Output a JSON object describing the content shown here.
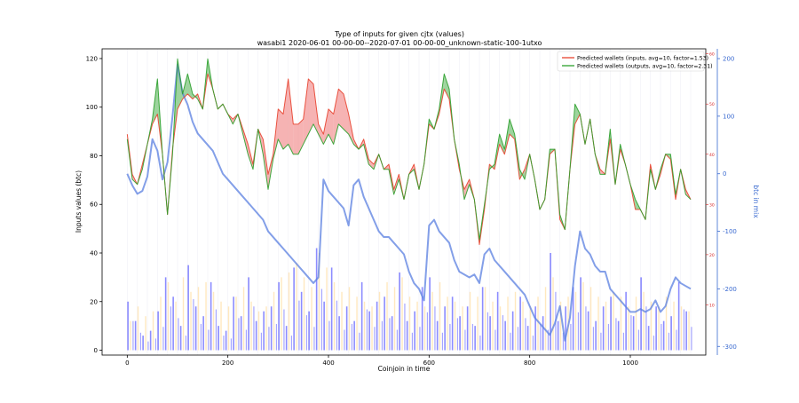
{
  "chart_data": {
    "type": "line",
    "title": "Type of inputs for given cjtx (values)",
    "subtitle": "wasabi1 2020-06-01 00-00-00--2020-07-01 00-00-00_unknown-static-100-1utxo",
    "xlabel": "Coinjoin in time",
    "ylabel": "Inputs values (btc)",
    "y2label": "btc in mix",
    "xlim": [
      -50,
      1150
    ],
    "ylim": [
      -2,
      124
    ],
    "y2lim": [
      -315,
      217
    ],
    "y3lim": [
      0,
      61
    ],
    "x_ticks": [
      0,
      200,
      400,
      600,
      800,
      1000
    ],
    "y_ticks": [
      0,
      20,
      40,
      60,
      80,
      100,
      120
    ],
    "y2_ticks": [
      -300,
      -200,
      -100,
      0,
      100,
      200
    ],
    "y3_ticks": [
      10,
      20,
      30,
      40,
      50,
      60
    ],
    "legend_position": "top-right",
    "grid": false,
    "series": [
      {
        "name": "Predicted wallets (inputs, avg=10, factor=1.53)",
        "color": "#e8432f",
        "axis": "right-inner",
        "x": [
          0,
          10,
          20,
          30,
          40,
          50,
          60,
          70,
          80,
          90,
          100,
          110,
          120,
          130,
          140,
          150,
          160,
          170,
          180,
          190,
          200,
          210,
          220,
          230,
          240,
          250,
          260,
          270,
          280,
          290,
          300,
          310,
          320,
          330,
          340,
          350,
          360,
          370,
          380,
          390,
          400,
          410,
          420,
          430,
          440,
          450,
          460,
          470,
          480,
          490,
          500,
          510,
          520,
          530,
          540,
          550,
          560,
          570,
          580,
          590,
          600,
          610,
          620,
          630,
          640,
          650,
          660,
          670,
          680,
          690,
          700,
          710,
          720,
          730,
          740,
          750,
          760,
          770,
          780,
          790,
          800,
          810,
          820,
          830,
          840,
          850,
          860,
          870,
          880,
          890,
          900,
          910,
          920,
          930,
          940,
          950,
          960,
          970,
          980,
          990,
          1000,
          1010,
          1020,
          1030,
          1040,
          1050,
          1060,
          1070,
          1080,
          1090,
          1100,
          1110,
          1120
        ],
        "values": [
          44,
          36,
          34,
          38,
          42,
          46,
          48,
          40,
          28,
          41,
          49,
          51,
          52,
          51,
          52,
          49,
          56,
          53,
          49,
          50,
          48,
          47,
          48,
          45,
          42,
          38,
          45,
          43,
          36,
          40,
          49,
          48,
          55,
          46,
          46,
          47,
          55,
          54,
          46,
          44,
          49,
          48,
          53,
          52,
          48,
          43,
          41,
          43,
          39,
          38,
          40,
          37,
          38,
          33,
          36,
          31,
          36,
          38,
          33,
          38,
          46,
          45,
          48,
          53,
          51,
          43,
          37,
          33,
          35,
          31,
          22,
          29,
          38,
          37,
          42,
          40,
          44,
          43,
          35,
          37,
          40,
          35,
          29,
          31,
          40,
          41,
          27,
          25,
          37,
          46,
          48,
          42,
          47,
          40,
          37,
          36,
          43,
          34,
          41,
          38,
          34,
          29,
          29,
          27,
          38,
          33,
          36,
          40,
          39,
          31,
          37,
          33,
          31
        ]
      },
      {
        "name": "Predicted wallets (outputs, avg=10, factor=2.31)",
        "color": "#2ca02c",
        "axis": "right-inner",
        "x": [
          0,
          10,
          20,
          30,
          40,
          50,
          60,
          70,
          80,
          90,
          100,
          110,
          120,
          130,
          140,
          150,
          160,
          170,
          180,
          190,
          200,
          210,
          220,
          230,
          240,
          250,
          260,
          270,
          280,
          290,
          300,
          310,
          320,
          330,
          340,
          350,
          360,
          370,
          380,
          390,
          400,
          410,
          420,
          430,
          440,
          450,
          460,
          470,
          480,
          490,
          500,
          510,
          520,
          530,
          540,
          550,
          560,
          570,
          580,
          590,
          600,
          610,
          620,
          630,
          640,
          650,
          660,
          670,
          680,
          690,
          700,
          710,
          720,
          730,
          740,
          750,
          760,
          770,
          780,
          790,
          800,
          810,
          820,
          830,
          840,
          850,
          860,
          870,
          880,
          890,
          900,
          910,
          920,
          930,
          940,
          950,
          960,
          970,
          980,
          990,
          1000,
          1010,
          1020,
          1030,
          1040,
          1050,
          1060,
          1070,
          1080,
          1090,
          1100,
          1110,
          1120
        ],
        "values": [
          43,
          35,
          34,
          37,
          42,
          47,
          55,
          40,
          28,
          40,
          59,
          52,
          56,
          52,
          51,
          49,
          59,
          53,
          49,
          50,
          48,
          46,
          48,
          44,
          40,
          37,
          45,
          40,
          33,
          39,
          43,
          41,
          42,
          40,
          40,
          42,
          44,
          46,
          44,
          42,
          44,
          42,
          46,
          45,
          44,
          42,
          41,
          42,
          38,
          37,
          40,
          37,
          37,
          32,
          35,
          31,
          36,
          37,
          33,
          38,
          47,
          45,
          49,
          56,
          53,
          43,
          38,
          31,
          34,
          31,
          23,
          30,
          37,
          38,
          44,
          41,
          47,
          44,
          37,
          35,
          40,
          35,
          29,
          31,
          41,
          41,
          28,
          25,
          37,
          50,
          48,
          42,
          47,
          40,
          36,
          36,
          45,
          34,
          42,
          38,
          34,
          31,
          29,
          27,
          37,
          33,
          37,
          40,
          40,
          32,
          37,
          32,
          31
        ]
      },
      {
        "name": "btc in mix",
        "color": "#5a7fe0",
        "axis": "right",
        "x": [
          0,
          10,
          20,
          30,
          40,
          50,
          60,
          70,
          80,
          90,
          100,
          110,
          120,
          130,
          140,
          150,
          160,
          170,
          180,
          190,
          200,
          210,
          220,
          230,
          240,
          250,
          260,
          270,
          280,
          290,
          300,
          310,
          320,
          330,
          340,
          350,
          360,
          370,
          380,
          390,
          400,
          410,
          420,
          430,
          440,
          450,
          460,
          470,
          480,
          490,
          500,
          510,
          520,
          530,
          540,
          550,
          560,
          570,
          580,
          590,
          600,
          610,
          620,
          630,
          640,
          650,
          660,
          670,
          680,
          690,
          700,
          710,
          720,
          730,
          740,
          750,
          760,
          770,
          780,
          790,
          800,
          810,
          820,
          830,
          840,
          850,
          860,
          870,
          880,
          890,
          900,
          910,
          920,
          930,
          940,
          950,
          960,
          970,
          980,
          990,
          1000,
          1010,
          1020,
          1030,
          1040,
          1050,
          1060,
          1070,
          1080,
          1090,
          1100,
          1110,
          1120
        ],
        "values": [
          0,
          -20,
          -35,
          -30,
          -5,
          60,
          40,
          -10,
          20,
          100,
          190,
          140,
          120,
          90,
          70,
          60,
          50,
          40,
          20,
          0,
          -10,
          -20,
          -30,
          -40,
          -50,
          -60,
          -70,
          -80,
          -100,
          -110,
          -120,
          -130,
          -140,
          -150,
          -160,
          -170,
          -180,
          -190,
          -180,
          -10,
          -30,
          -40,
          -50,
          -60,
          -90,
          -20,
          -10,
          -40,
          -60,
          -80,
          -100,
          -110,
          -110,
          -120,
          -130,
          -140,
          -170,
          -190,
          -200,
          -220,
          -90,
          -80,
          -100,
          -110,
          -120,
          -150,
          -170,
          -175,
          -180,
          -175,
          -190,
          -140,
          -130,
          -150,
          -160,
          -170,
          -180,
          -190,
          -200,
          -210,
          -230,
          -250,
          -260,
          -270,
          -280,
          -260,
          -230,
          -290,
          -250,
          -160,
          -100,
          -130,
          -140,
          -160,
          -170,
          -170,
          -200,
          -210,
          -220,
          -230,
          -240,
          -240,
          -235,
          -240,
          -235,
          -220,
          -240,
          -230,
          -200,
          -180,
          -190,
          -195,
          -200
        ]
      }
    ],
    "background_bars": {
      "colors": [
        "#0000ff",
        "#ffa500"
      ],
      "x": [
        0,
        15,
        30,
        45,
        60,
        75,
        90,
        105,
        120,
        135,
        150,
        165,
        180,
        195,
        210,
        225,
        240,
        255,
        270,
        285,
        300,
        315,
        330,
        345,
        360,
        375,
        390,
        405,
        420,
        435,
        450,
        465,
        480,
        495,
        510,
        525,
        540,
        555,
        570,
        585,
        600,
        615,
        630,
        645,
        660,
        675,
        690,
        705,
        720,
        735,
        750,
        765,
        780,
        795,
        810,
        825,
        840,
        855,
        870,
        885,
        900,
        915,
        930,
        945,
        960,
        975,
        990,
        1005,
        1020,
        1035,
        1050,
        1065,
        1080,
        1095,
        1110
      ],
      "blue_values": [
        20,
        12,
        6,
        8,
        16,
        30,
        22,
        10,
        35,
        18,
        14,
        28,
        10,
        8,
        22,
        14,
        30,
        12,
        16,
        18,
        28,
        10,
        34,
        24,
        16,
        42,
        20,
        34,
        14,
        18,
        12,
        28,
        16,
        20,
        22,
        14,
        32,
        12,
        16,
        26,
        30,
        12,
        18,
        22,
        14,
        18,
        10,
        26,
        14,
        24,
        12,
        16,
        22,
        10,
        18,
        14,
        40,
        12,
        18,
        26,
        30,
        16,
        12,
        18,
        22,
        12,
        24,
        14,
        30,
        10,
        18,
        12,
        14,
        28,
        16
      ],
      "orange_values": [
        12,
        18,
        14,
        16,
        22,
        28,
        20,
        30,
        24,
        26,
        28,
        24,
        20,
        18,
        22,
        26,
        20,
        16,
        18,
        24,
        30,
        32,
        36,
        30,
        26,
        40,
        34,
        28,
        24,
        26,
        22,
        20,
        18,
        24,
        28,
        26,
        30,
        22,
        20,
        18,
        24,
        28,
        22,
        20,
        18,
        24,
        22,
        26,
        20,
        18,
        22,
        24,
        20,
        18,
        22,
        26,
        30,
        20,
        22,
        24,
        28,
        26,
        22,
        20,
        24,
        22,
        18,
        22,
        24,
        20,
        18,
        22,
        20,
        18,
        16
      ]
    }
  }
}
